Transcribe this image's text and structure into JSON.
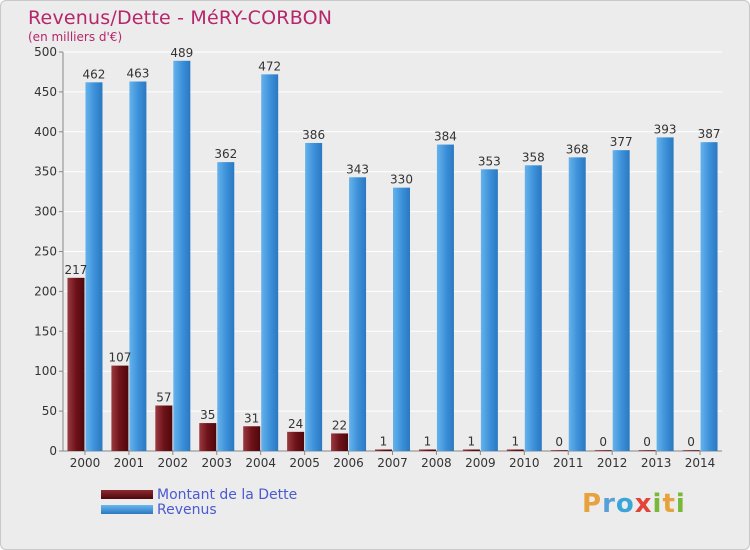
{
  "header": {
    "title": "Revenus/Dette - MéRY-CORBON",
    "subtitle": "(en milliers d'€)"
  },
  "logo": {
    "text": "Proxiti",
    "letters": [
      {
        "ch": "P",
        "color": "#e8a23c"
      },
      {
        "ch": "r",
        "color": "#5aa0d8"
      },
      {
        "ch": "o",
        "color": "#3aa5d8"
      },
      {
        "ch": "x",
        "color": "#e2443a"
      },
      {
        "ch": "i",
        "color": "#7ab83a"
      },
      {
        "ch": "t",
        "color": "#e8a23c"
      },
      {
        "ch": "i",
        "color": "#7ab83a"
      }
    ]
  },
  "colors": {
    "dette": "#6e1219",
    "revenus": "#3b8fd8",
    "title": "#b5266b",
    "legend_text": "#4a5ad0"
  },
  "chart_data": {
    "type": "bar",
    "title": "Revenus/Dette - MéRY-CORBON",
    "ylabel": "(en milliers d'€)",
    "ylim": [
      0,
      500
    ],
    "yticks": [
      0,
      50,
      100,
      150,
      200,
      250,
      300,
      350,
      400,
      450,
      500
    ],
    "grid": true,
    "legend_position": "bottom-left",
    "categories": [
      "2000",
      "2001",
      "2002",
      "2003",
      "2004",
      "2005",
      "2006",
      "2007",
      "2008",
      "2009",
      "2010",
      "2011",
      "2012",
      "2013",
      "2014"
    ],
    "series": [
      {
        "name": "Montant de la Dette",
        "values": [
          217,
          107,
          57,
          35,
          31,
          24,
          22,
          1,
          1,
          1,
          1,
          0,
          0,
          0,
          0
        ]
      },
      {
        "name": "Revenus",
        "values": [
          462,
          463,
          489,
          362,
          472,
          386,
          343,
          330,
          384,
          353,
          358,
          368,
          377,
          393,
          387
        ]
      }
    ]
  }
}
